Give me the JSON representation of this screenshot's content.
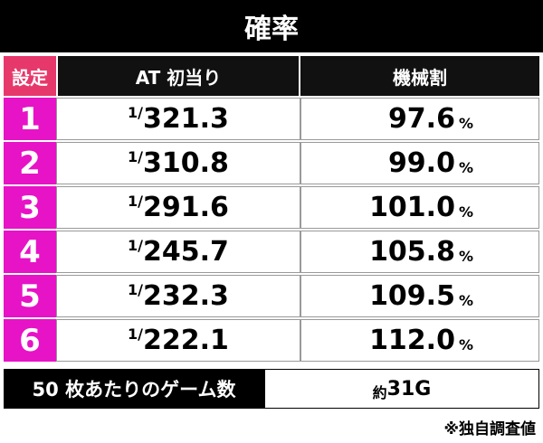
{
  "title": "確率",
  "table": {
    "header": [
      "設定",
      "AT 初当り",
      "機械割"
    ],
    "rows": [
      [
        "1",
        "1/",
        "321.3",
        "97.6",
        "%"
      ],
      [
        "2",
        "1/",
        "310.8",
        "99.0",
        "%"
      ],
      [
        "3",
        "1/",
        "291.6",
        "101.0",
        "%"
      ],
      [
        "4",
        "1/",
        "245.7",
        "105.8",
        "%"
      ],
      [
        "5",
        "1/",
        "232.3",
        "109.5",
        "%"
      ],
      [
        "6",
        "1/",
        "222.1",
        "112.0",
        "%"
      ]
    ]
  },
  "footer": {
    "label": "50 枚あたりのゲーム数",
    "prefix": "約",
    "value": "31G"
  },
  "note": "※独自調査値"
}
